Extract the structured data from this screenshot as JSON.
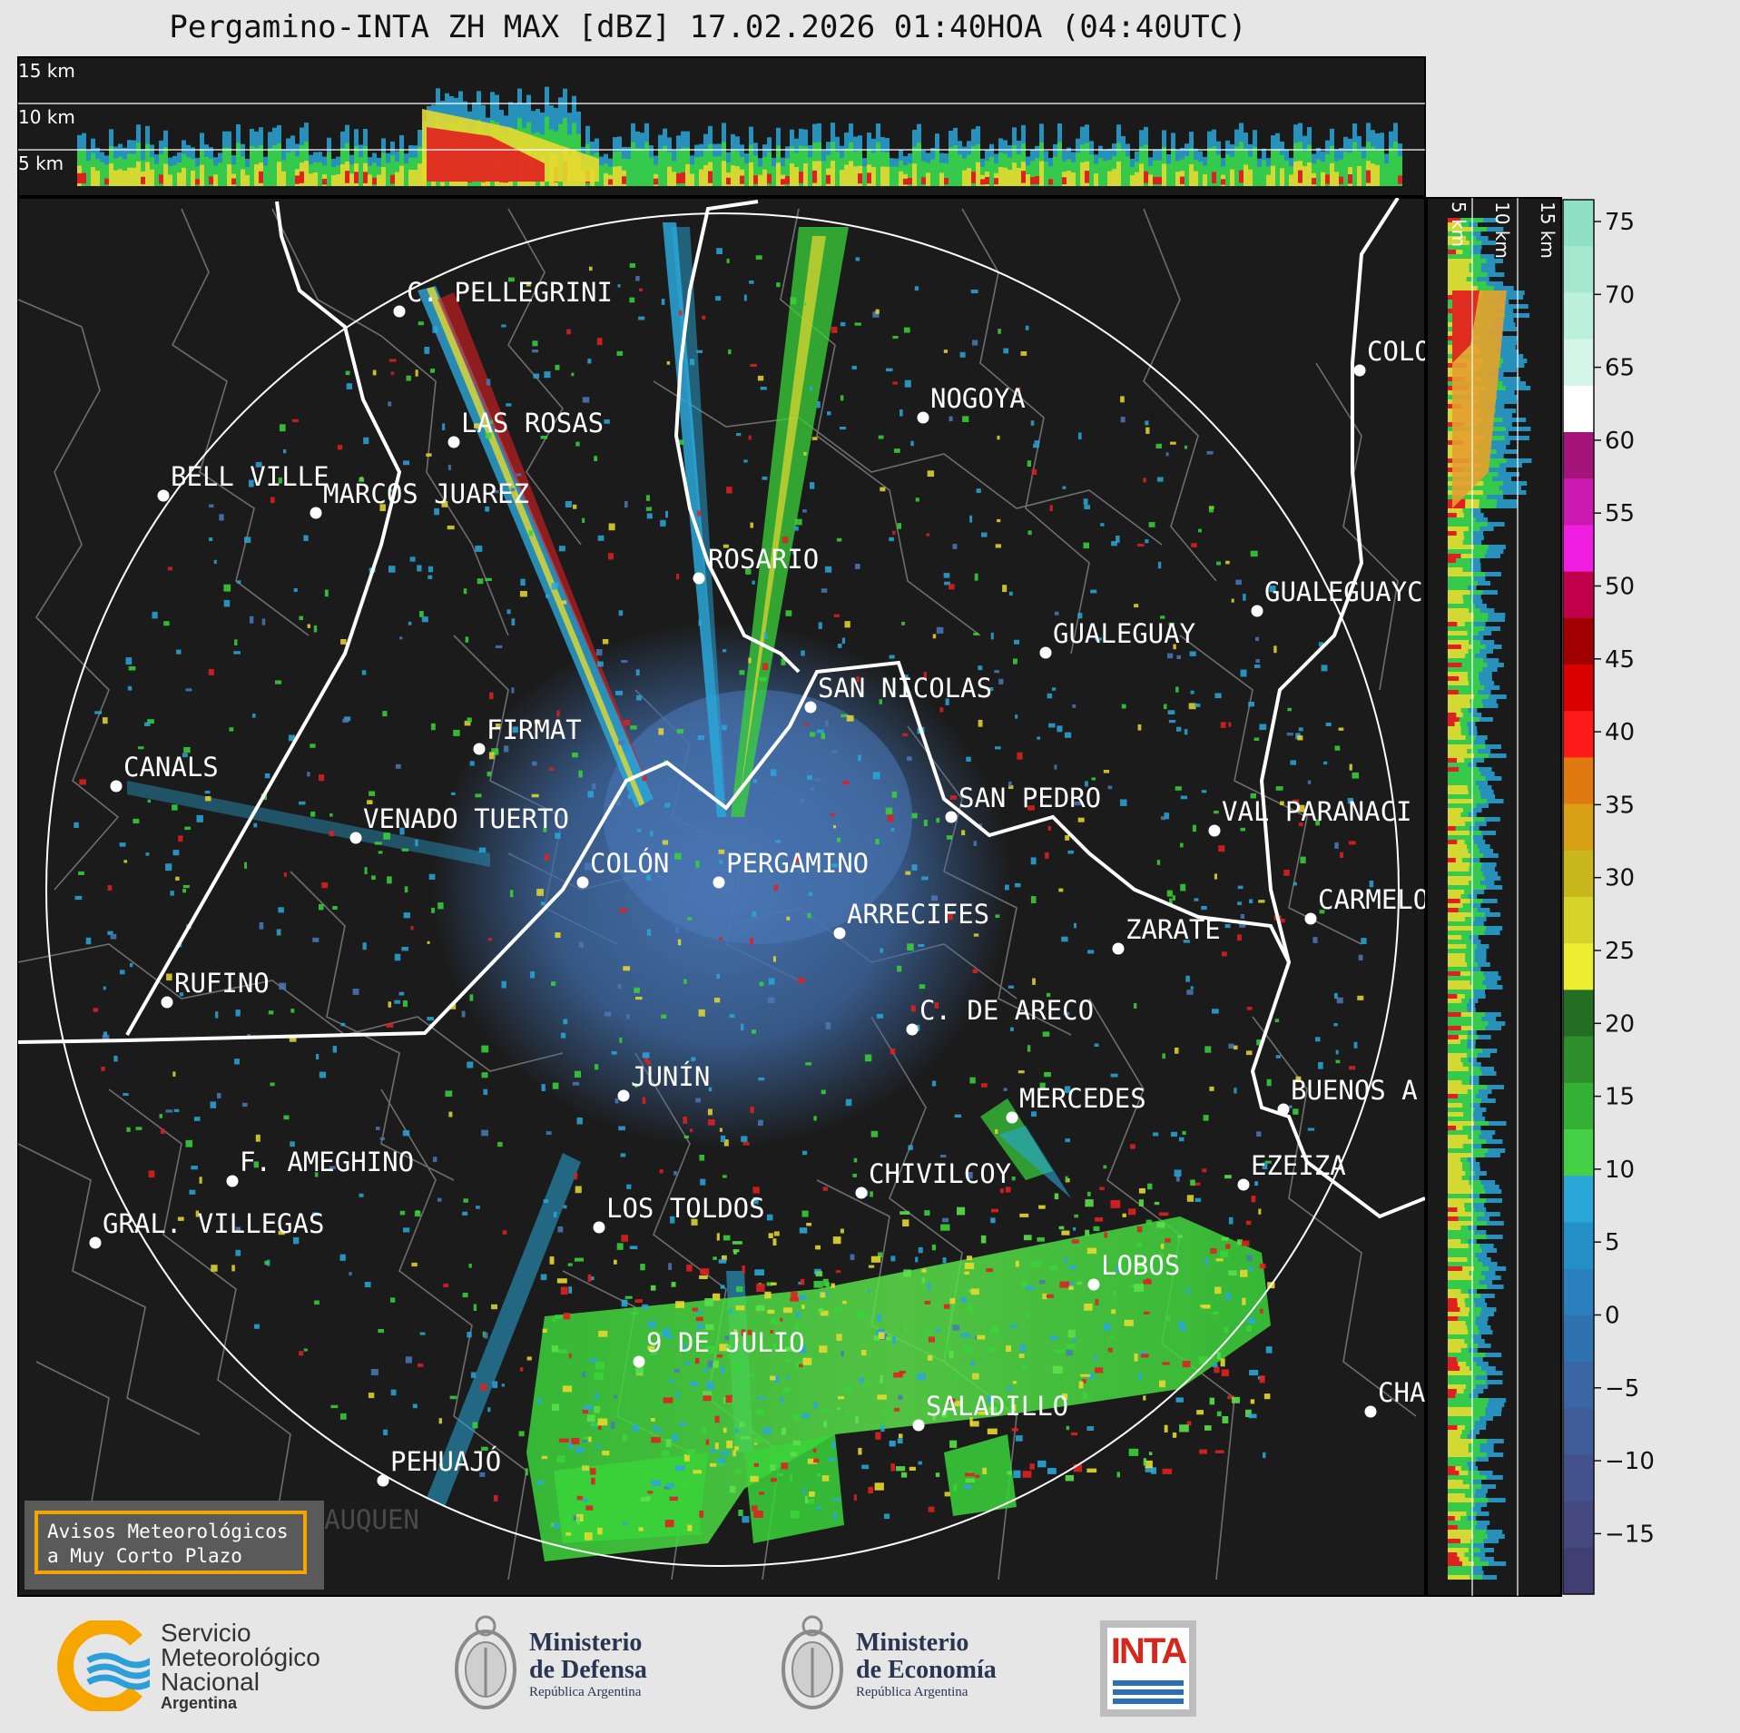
{
  "title": "Pergamino-INTA ZH MAX [dBZ] 17.02.2026 01:40HOA (04:40UTC)",
  "top_profile": {
    "km_labels": [
      "15 km",
      "10 km",
      "5 km"
    ]
  },
  "side_profile": {
    "km_labels": [
      "5 km",
      "10 km",
      "15 km"
    ]
  },
  "colorbar": {
    "unit": "dBZ",
    "ticks": [
      "75",
      "70",
      "65",
      "60",
      "55",
      "50",
      "45",
      "40",
      "35",
      "30",
      "25",
      "20",
      "15",
      "10",
      "5",
      "0",
      "−5",
      "−10",
      "−15"
    ]
  },
  "cities": [
    {
      "name": "C. PELLEGRINI"
    },
    {
      "name": "LAS ROSAS"
    },
    {
      "name": "NOGOYA"
    },
    {
      "name": "COLO"
    },
    {
      "name": "BELL VILLE"
    },
    {
      "name": "MARCOS JUAREZ"
    },
    {
      "name": "ROSARIO"
    },
    {
      "name": "GUALEGUAYC"
    },
    {
      "name": "GUALEGUAY"
    },
    {
      "name": "SAN NICOLAS"
    },
    {
      "name": "FIRMAT"
    },
    {
      "name": "CANALS"
    },
    {
      "name": "SAN PEDRO"
    },
    {
      "name": "VENADO TUERTO"
    },
    {
      "name": "VAL PARANACI"
    },
    {
      "name": "COLÓN"
    },
    {
      "name": "PERGAMINO"
    },
    {
      "name": "CARMELO"
    },
    {
      "name": "ARRECIFES"
    },
    {
      "name": "ZARATE"
    },
    {
      "name": "RUFINO"
    },
    {
      "name": "C. DE ARECO"
    },
    {
      "name": "JUNÍN"
    },
    {
      "name": "BUENOS A"
    },
    {
      "name": "MERCEDES"
    },
    {
      "name": "F. AMEGHINO"
    },
    {
      "name": "EZEIZA"
    },
    {
      "name": "CHIVILCOY"
    },
    {
      "name": "GRAL. VILLEGAS"
    },
    {
      "name": "LOS TOLDOS"
    },
    {
      "name": "LOBOS"
    },
    {
      "name": "9 DE JULIO"
    },
    {
      "name": "CHA"
    },
    {
      "name": "SALADILLO"
    },
    {
      "name": "PEHUAJÓ"
    },
    {
      "name": "TRENQUE LAUQUEN"
    }
  ],
  "warning_box": {
    "line1": "Avisos Meteorológicos",
    "line2": "a Muy Corto Plazo"
  },
  "logos": {
    "smn": {
      "line1": "Servicio",
      "line2": "Meteorológico",
      "line3": "Nacional",
      "line4": "Argentina"
    },
    "defensa": {
      "line1": "Ministerio",
      "line2": "de Defensa",
      "line3": "República Argentina"
    },
    "economia": {
      "line1": "Ministerio",
      "line2": "de Economía",
      "line3": "República Argentina"
    },
    "inta": {
      "text": "INTA"
    }
  }
}
